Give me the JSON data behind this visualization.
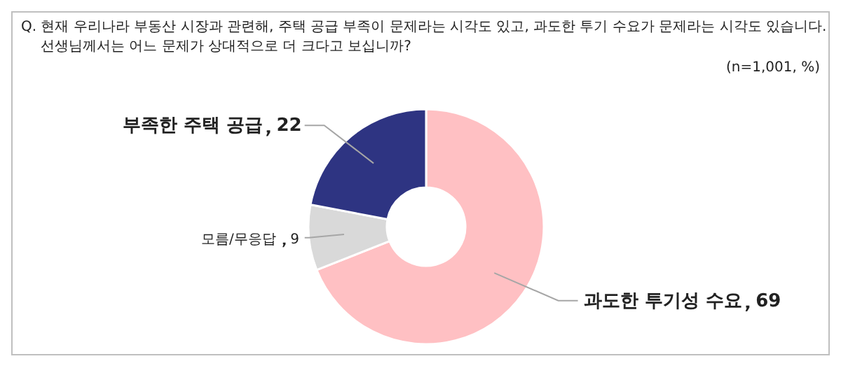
{
  "chart_data": {
    "type": "donut",
    "title": "Q. 현재 우리나라 부동산 시장과 관련해, 주택 공급 부족이 문제라는 시각도 있고, 과도한 투기 수요가 문제라는 시각도 있습니다. 선생님께서는 어느 문제가 상대적으로 더 크다고 보십니까?",
    "subtitle": "(n=1,001, %)",
    "categories": [
      "과도한 투기성 수요",
      "모름/무응답",
      "부족한 주택 공급"
    ],
    "values": [
      69,
      9,
      22
    ],
    "colors": [
      "#ffc0c3",
      "#d9d9d9",
      "#2e3482"
    ],
    "data_labels": true,
    "legend": false
  }
}
